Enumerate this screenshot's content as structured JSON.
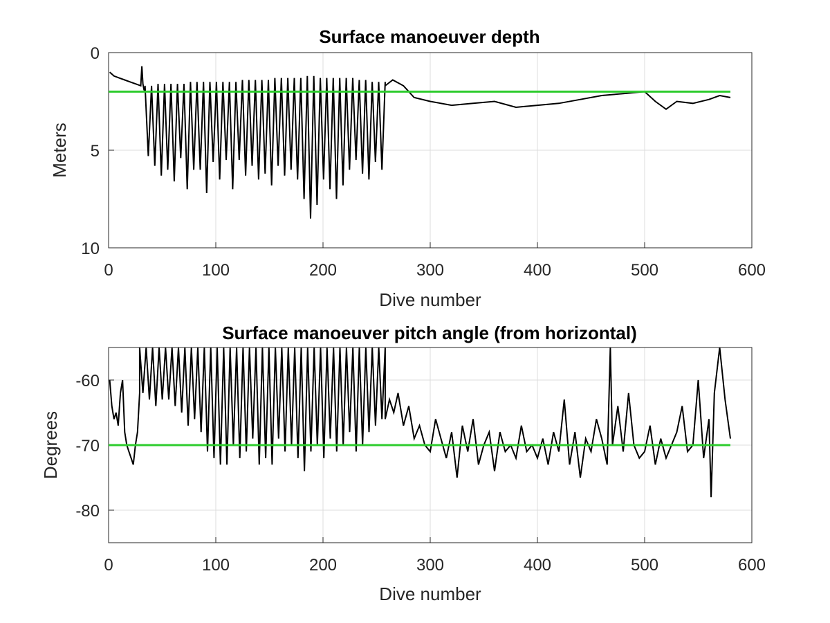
{
  "chart_data": [
    {
      "type": "line",
      "title": "Surface manoeuver depth",
      "xlabel": "Dive number",
      "ylabel": "Meters",
      "xlim": [
        0,
        600
      ],
      "ylim": [
        0,
        10
      ],
      "y_reversed": true,
      "grid": true,
      "xticks": [
        0,
        100,
        200,
        300,
        400,
        500,
        600
      ],
      "xtick_labels": [
        "0",
        "100",
        "200",
        "300",
        "400",
        "500",
        "600"
      ],
      "yticks": [
        0,
        5,
        10
      ],
      "ytick_labels": [
        "0",
        "5",
        "10"
      ],
      "colors": {
        "series": "#000000",
        "reference": "#2ecc2e"
      },
      "reference_line": {
        "y": 2,
        "x_range": [
          0,
          580
        ]
      },
      "series": [
        {
          "segments": [
            {
              "x": [
                1,
                5,
                10,
                15,
                20,
                25,
                30
              ],
              "y": [
                1.0,
                1.2,
                1.3,
                1.4,
                1.5,
                1.6,
                1.7
              ]
            },
            {
              "x": [
                30,
                31,
                32,
                33,
                34
              ],
              "y": [
                1.7,
                0.7,
                1.6,
                1.9,
                2.0
              ]
            },
            {
              "x_range": [
                34,
                258
              ],
              "period": 6,
              "top": [
                1.7,
                1.6,
                1.6,
                1.5,
                1.5,
                1.5,
                1.4,
                1.4,
                1.3,
                1.3,
                1.2,
                1.3,
                1.3,
                1.4,
                1.5
              ],
              "bottom": [
                5.3,
                5.8,
                6.3,
                7.0,
                6.0,
                6.6,
                5.4,
                7.0,
                6.0,
                5.5,
                6.0,
                7.2,
                5.6,
                6.5,
                5.5,
                6.0,
                7.0,
                5.5,
                6.3,
                5.8,
                6.5,
                5.7,
                6.2,
                6.8,
                5.8,
                6.3,
                6.0,
                6.5,
                6.8,
                7.5,
                8.5,
                7.8,
                6.5,
                7.0,
                6.5,
                7.5,
                6.8,
                6.0,
                5.5,
                6.2,
                5.8,
                6.5,
                5.6,
                6.0
              ]
            },
            {
              "x": [
                258,
                265,
                275,
                285,
                300,
                320,
                340,
                360,
                380,
                400,
                420,
                440,
                460,
                480,
                500,
                510,
                520,
                530,
                545,
                560,
                570,
                580
              ],
              "y": [
                1.7,
                1.4,
                1.7,
                2.3,
                2.5,
                2.7,
                2.6,
                2.5,
                2.8,
                2.7,
                2.6,
                2.4,
                2.2,
                2.1,
                2.0,
                2.5,
                2.9,
                2.5,
                2.6,
                2.4,
                2.2,
                2.3
              ]
            }
          ]
        }
      ]
    },
    {
      "type": "line",
      "title": "Surface manoeuver pitch angle (from horizontal)",
      "xlabel": "Dive number",
      "ylabel": "Degrees",
      "xlim": [
        0,
        600
      ],
      "ylim": [
        -85,
        -55
      ],
      "grid": true,
      "xticks": [
        0,
        100,
        200,
        300,
        400,
        500,
        600
      ],
      "xtick_labels": [
        "0",
        "100",
        "200",
        "300",
        "400",
        "500",
        "600"
      ],
      "yticks": [
        -60,
        -70,
        -80
      ],
      "ytick_labels": [
        "-60",
        "-70",
        "-80"
      ],
      "colors": {
        "series": "#000000",
        "reference": "#2ecc2e"
      },
      "reference_line": {
        "y": -70,
        "x_range": [
          0,
          580
        ]
      },
      "series": [
        {
          "segments": [
            {
              "x": [
                1,
                3,
                5,
                7,
                9,
                11,
                13,
                15,
                17,
                19,
                21,
                23,
                25,
                27,
                29
              ],
              "y": [
                -60,
                -64,
                -66,
                -65,
                -67,
                -62,
                -60,
                -68,
                -70,
                -71,
                -72,
                -73,
                -70,
                -68,
                -62
              ]
            },
            {
              "x_range": [
                29,
                258
              ],
              "period": 6,
              "top": [
                -55
              ],
              "bottom": [
                -62,
                -63,
                -64,
                -63,
                -63,
                -64,
                -65,
                -67,
                -66,
                -68,
                -71,
                -72,
                -73,
                -73,
                -70,
                -72,
                -71,
                -69,
                -73,
                -70,
                -72,
                -73,
                -69,
                -71,
                -70,
                -72,
                -74,
                -71,
                -70,
                -72,
                -69,
                -71,
                -70,
                -68,
                -71,
                -70,
                -68,
                -67,
                -66
              ]
            },
            {
              "x": [
                258,
                262,
                266,
                270,
                275,
                280,
                285,
                290,
                295,
                300,
                305,
                310,
                315,
                320,
                325,
                330,
                335,
                340,
                345,
                350,
                355,
                360,
                365,
                370,
                375,
                380,
                385,
                390,
                395,
                400,
                405,
                410,
                415,
                420,
                425,
                430,
                435,
                440,
                445,
                450,
                455,
                460,
                465,
                468,
                470,
                475,
                480,
                485,
                490,
                495,
                500,
                505,
                510,
                515,
                520,
                525,
                530,
                535,
                540,
                545,
                550,
                555,
                560,
                562,
                565,
                570,
                575,
                580
              ],
              "y": [
                -66,
                -63,
                -65,
                -62,
                -67,
                -64,
                -69,
                -67,
                -70,
                -71,
                -66,
                -69,
                -72,
                -68,
                -75,
                -67,
                -71,
                -66,
                -73,
                -70,
                -68,
                -74,
                -68,
                -71,
                -70,
                -72,
                -67,
                -71,
                -70,
                -72,
                -69,
                -73,
                -68,
                -71,
                -63,
                -73,
                -68,
                -75,
                -69,
                -71,
                -66,
                -69,
                -73,
                -55,
                -70,
                -64,
                -71,
                -62,
                -70,
                -72,
                -71,
                -67,
                -73,
                -69,
                -72,
                -70,
                -68,
                -64,
                -71,
                -70,
                -60,
                -72,
                -66,
                -78,
                -62,
                -55,
                -63,
                -69
              ]
            }
          ]
        }
      ]
    }
  ]
}
